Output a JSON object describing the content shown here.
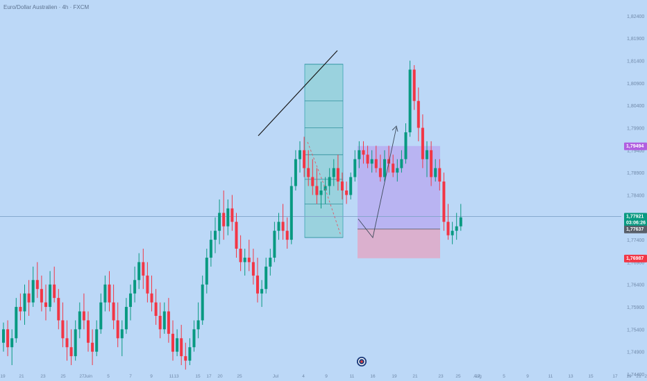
{
  "title": "Euro/Dollar Australien · 4h · FXCM",
  "colors": {
    "background": "#bcd8f7",
    "up": "#089981",
    "down": "#f23645",
    "price_line": "#7fa3c9",
    "measure_box": "#8fd0d6",
    "target_box": "#b9aef1",
    "stop_box": "#e1a9c7",
    "trendline": "#1a1a1a",
    "label_green": "#089981",
    "label_red": "#f23645",
    "label_purple": "#b05fe0",
    "label_gray": "#595f6a"
  },
  "y_axis_ticks": [
    "1,82400",
    "1,81900",
    "1,81400",
    "1,80900",
    "1,80400",
    "1,79900",
    "1,79400",
    "1,78900",
    "1,78400",
    "1,77900",
    "1,77400",
    "1,76900",
    "1,76400",
    "1,75900",
    "1,75400",
    "1,74900",
    "1,74400"
  ],
  "x_axis_ticks": [
    "19",
    "21",
    "23",
    "25",
    "27",
    "Juin",
    "5",
    "7",
    "9",
    "11",
    "13",
    "15",
    "17",
    "20",
    "25",
    "Jul",
    "4",
    "9",
    "11",
    "16",
    "19",
    "21",
    "23",
    "25",
    "27",
    "Aug",
    "5",
    "9",
    "11",
    "13",
    "15",
    "17",
    "19",
    "21",
    "24"
  ],
  "price_labels": {
    "target": "1,79494",
    "current": "1,77921",
    "countdown": "03:06:26",
    "entry": "1,77637",
    "stop": "1,76987"
  },
  "icon": "tradingview-logo-icon",
  "chart_data": {
    "type": "candlestick",
    "title": "Euro/Dollar Australien · 4h · FXCM",
    "ylim": [
      1.744,
      1.826
    ],
    "candles": [
      [
        1.751,
        1.7555,
        1.749,
        1.754
      ],
      [
        1.754,
        1.756,
        1.748,
        1.75
      ],
      [
        1.75,
        1.754,
        1.746,
        1.752
      ],
      [
        1.752,
        1.761,
        1.751,
        1.759
      ],
      [
        1.759,
        1.762,
        1.756,
        1.758
      ],
      [
        1.758,
        1.764,
        1.755,
        1.762
      ],
      [
        1.762,
        1.765,
        1.757,
        1.76
      ],
      [
        1.76,
        1.768,
        1.759,
        1.765
      ],
      [
        1.765,
        1.769,
        1.761,
        1.763
      ],
      [
        1.763,
        1.766,
        1.758,
        1.76
      ],
      [
        1.76,
        1.764,
        1.756,
        1.759
      ],
      [
        1.759,
        1.767,
        1.758,
        1.764
      ],
      [
        1.764,
        1.768,
        1.76,
        1.761
      ],
      [
        1.761,
        1.763,
        1.754,
        1.756
      ],
      [
        1.756,
        1.76,
        1.75,
        1.752
      ],
      [
        1.752,
        1.756,
        1.747,
        1.75
      ],
      [
        1.75,
        1.754,
        1.746,
        1.748
      ],
      [
        1.748,
        1.756,
        1.747,
        1.754
      ],
      [
        1.754,
        1.76,
        1.752,
        1.758
      ],
      [
        1.758,
        1.762,
        1.754,
        1.756
      ],
      [
        1.756,
        1.758,
        1.749,
        1.751
      ],
      [
        1.751,
        1.754,
        1.746,
        1.749
      ],
      [
        1.749,
        1.756,
        1.748,
        1.754
      ],
      [
        1.754,
        1.762,
        1.753,
        1.76
      ],
      [
        1.76,
        1.766,
        1.758,
        1.764
      ],
      [
        1.764,
        1.767,
        1.758,
        1.76
      ],
      [
        1.76,
        1.764,
        1.754,
        1.756
      ],
      [
        1.756,
        1.76,
        1.75,
        1.752
      ],
      [
        1.752,
        1.756,
        1.748,
        1.754
      ],
      [
        1.754,
        1.761,
        1.753,
        1.759
      ],
      [
        1.759,
        1.764,
        1.756,
        1.762
      ],
      [
        1.762,
        1.768,
        1.76,
        1.765
      ],
      [
        1.765,
        1.771,
        1.763,
        1.769
      ],
      [
        1.769,
        1.772,
        1.763,
        1.766
      ],
      [
        1.766,
        1.769,
        1.76,
        1.762
      ],
      [
        1.762,
        1.766,
        1.758,
        1.76
      ],
      [
        1.76,
        1.763,
        1.755,
        1.757
      ],
      [
        1.757,
        1.76,
        1.752,
        1.754
      ],
      [
        1.754,
        1.76,
        1.753,
        1.758
      ],
      [
        1.758,
        1.761,
        1.751,
        1.753
      ],
      [
        1.753,
        1.756,
        1.747,
        1.749
      ],
      [
        1.749,
        1.754,
        1.748,
        1.752
      ],
      [
        1.752,
        1.755,
        1.746,
        1.748
      ],
      [
        1.748,
        1.751,
        1.745,
        1.747
      ],
      [
        1.747,
        1.752,
        1.746,
        1.75
      ],
      [
        1.75,
        1.756,
        1.749,
        1.754
      ],
      [
        1.754,
        1.76,
        1.752,
        1.756
      ],
      [
        1.756,
        1.766,
        1.755,
        1.764
      ],
      [
        1.764,
        1.772,
        1.762,
        1.77
      ],
      [
        1.77,
        1.776,
        1.768,
        1.774
      ],
      [
        1.774,
        1.779,
        1.771,
        1.776
      ],
      [
        1.776,
        1.783,
        1.773,
        1.78
      ],
      [
        1.78,
        1.785,
        1.774,
        1.777
      ],
      [
        1.777,
        1.783,
        1.775,
        1.781
      ],
      [
        1.781,
        1.784,
        1.776,
        1.778
      ],
      [
        1.778,
        1.78,
        1.77,
        1.772
      ],
      [
        1.772,
        1.775,
        1.767,
        1.769
      ],
      [
        1.769,
        1.772,
        1.766,
        1.77
      ],
      [
        1.77,
        1.774,
        1.767,
        1.769
      ],
      [
        1.769,
        1.772,
        1.764,
        1.766
      ],
      [
        1.766,
        1.77,
        1.76,
        1.762
      ],
      [
        1.762,
        1.765,
        1.759,
        1.763
      ],
      [
        1.763,
        1.77,
        1.762,
        1.768
      ],
      [
        1.768,
        1.772,
        1.766,
        1.77
      ],
      [
        1.77,
        1.778,
        1.769,
        1.776
      ],
      [
        1.776,
        1.78,
        1.774,
        1.778
      ],
      [
        1.778,
        1.782,
        1.774,
        1.776
      ],
      [
        1.776,
        1.779,
        1.772,
        1.774
      ],
      [
        1.774,
        1.788,
        1.773,
        1.786
      ],
      [
        1.786,
        1.794,
        1.785,
        1.792
      ],
      [
        1.792,
        1.796,
        1.789,
        1.794
      ],
      [
        1.794,
        1.797,
        1.788,
        1.79
      ],
      [
        1.79,
        1.794,
        1.786,
        1.788
      ],
      [
        1.788,
        1.792,
        1.784,
        1.786
      ],
      [
        1.786,
        1.79,
        1.782,
        1.784
      ],
      [
        1.784,
        1.787,
        1.781,
        1.785
      ],
      [
        1.785,
        1.788,
        1.782,
        1.786
      ],
      [
        1.786,
        1.79,
        1.784,
        1.788
      ],
      [
        1.788,
        1.792,
        1.786,
        1.79
      ],
      [
        1.79,
        1.793,
        1.785,
        1.787
      ],
      [
        1.787,
        1.789,
        1.783,
        1.785
      ],
      [
        1.785,
        1.787,
        1.782,
        1.784
      ],
      [
        1.784,
        1.789,
        1.783,
        1.788
      ],
      [
        1.788,
        1.794,
        1.787,
        1.792
      ],
      [
        1.792,
        1.796,
        1.79,
        1.794
      ],
      [
        1.794,
        1.796,
        1.791,
        1.793
      ],
      [
        1.793,
        1.795,
        1.79,
        1.791
      ],
      [
        1.791,
        1.794,
        1.789,
        1.792
      ],
      [
        1.792,
        1.795,
        1.789,
        1.79
      ],
      [
        1.79,
        1.793,
        1.787,
        1.788
      ],
      [
        1.788,
        1.794,
        1.787,
        1.792
      ],
      [
        1.792,
        1.795,
        1.789,
        1.791
      ],
      [
        1.791,
        1.793,
        1.788,
        1.789
      ],
      [
        1.789,
        1.792,
        1.787,
        1.79
      ],
      [
        1.79,
        1.794,
        1.789,
        1.792
      ],
      [
        1.792,
        1.8,
        1.791,
        1.798
      ],
      [
        1.798,
        1.814,
        1.797,
        1.812
      ],
      [
        1.812,
        1.813,
        1.803,
        1.805
      ],
      [
        1.805,
        1.808,
        1.796,
        1.799
      ],
      [
        1.799,
        1.802,
        1.79,
        1.792
      ],
      [
        1.792,
        1.796,
        1.788,
        1.794
      ],
      [
        1.794,
        1.796,
        1.786,
        1.788
      ],
      [
        1.788,
        1.792,
        1.787,
        1.79
      ],
      [
        1.79,
        1.792,
        1.785,
        1.787
      ],
      [
        1.787,
        1.789,
        1.776,
        1.778
      ],
      [
        1.778,
        1.782,
        1.774,
        1.775
      ],
      [
        1.775,
        1.778,
        1.773,
        1.776
      ],
      [
        1.776,
        1.78,
        1.774,
        1.777
      ],
      [
        1.777,
        1.782,
        1.776,
        1.779
      ]
    ],
    "measure_box": {
      "price_from": 1.8132,
      "price_to": 1.7745,
      "levels": [
        1.8132,
        1.805,
        1.799,
        1.793,
        1.7875,
        1.782,
        1.7745
      ]
    },
    "trade": {
      "entry": 1.77637,
      "target": 1.79494,
      "stop": 1.76987,
      "current": 1.77921
    }
  }
}
